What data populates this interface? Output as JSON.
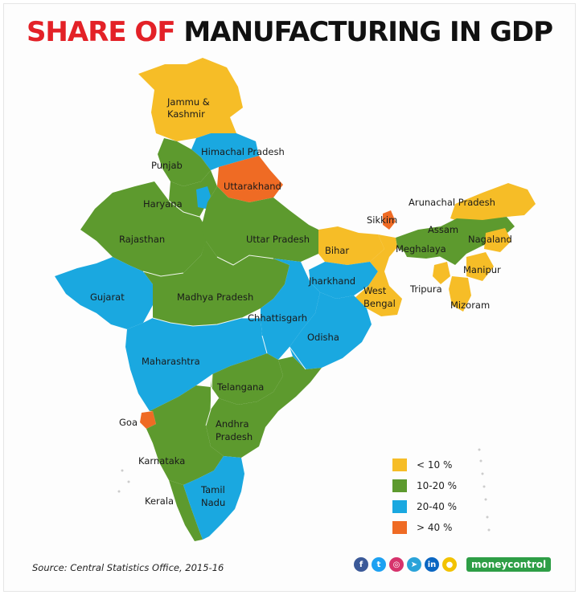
{
  "title": {
    "part1": "SHARE OF",
    "part2": "MANUFACTURING IN GDP"
  },
  "legend": [
    {
      "label": "< 10 %",
      "color": "#f6bd27"
    },
    {
      "label": "10-20 %",
      "color": "#5d9a2e"
    },
    {
      "label": "20-40 %",
      "color": "#1aa8e0"
    },
    {
      "label": "> 40 %",
      "color": "#ef6b24"
    }
  ],
  "colors": {
    "low": "#f6bd27",
    "mid": "#5d9a2e",
    "high": "#1aa8e0",
    "top": "#ef6b24"
  },
  "states": {
    "jk": "Jammu &",
    "jk2": "Kashmir",
    "hp": "Himachal Pradesh",
    "punjab": "Punjab",
    "uttarakhand": "Uttarakhand",
    "haryana": "Haryana",
    "rajasthan": "Rajasthan",
    "up": "Uttar Pradesh",
    "bihar": "Bihar",
    "sikkim": "Sikkim",
    "arunachal": "Arunachal Pradesh",
    "assam": "Assam",
    "meghalaya": "Meghalaya",
    "nagaland": "Nagaland",
    "manipur": "Manipur",
    "tripura": "Tripura",
    "mizoram": "Mizoram",
    "jharkhand": "Jharkhand",
    "wb": "West",
    "wb2": "Bengal",
    "gujarat": "Gujarat",
    "mp": "Madhya Pradesh",
    "chhattisgarh": "Chhattisgarh",
    "odisha": "Odisha",
    "maharashtra": "Maharashtra",
    "telangana": "Telangana",
    "goa": "Goa",
    "ap": "Andhra",
    "ap2": "Pradesh",
    "karnataka": "Karnataka",
    "tn": "Tamil",
    "tn2": "Nadu",
    "kerala": "Kerala"
  },
  "source": "Source: Central Statistics Office, 2015-16",
  "social": {
    "icons": [
      "facebook-icon",
      "twitter-icon",
      "instagram-icon",
      "telegram-icon",
      "linkedin-icon",
      "koo-icon"
    ],
    "brand": "moneycontrol"
  }
}
